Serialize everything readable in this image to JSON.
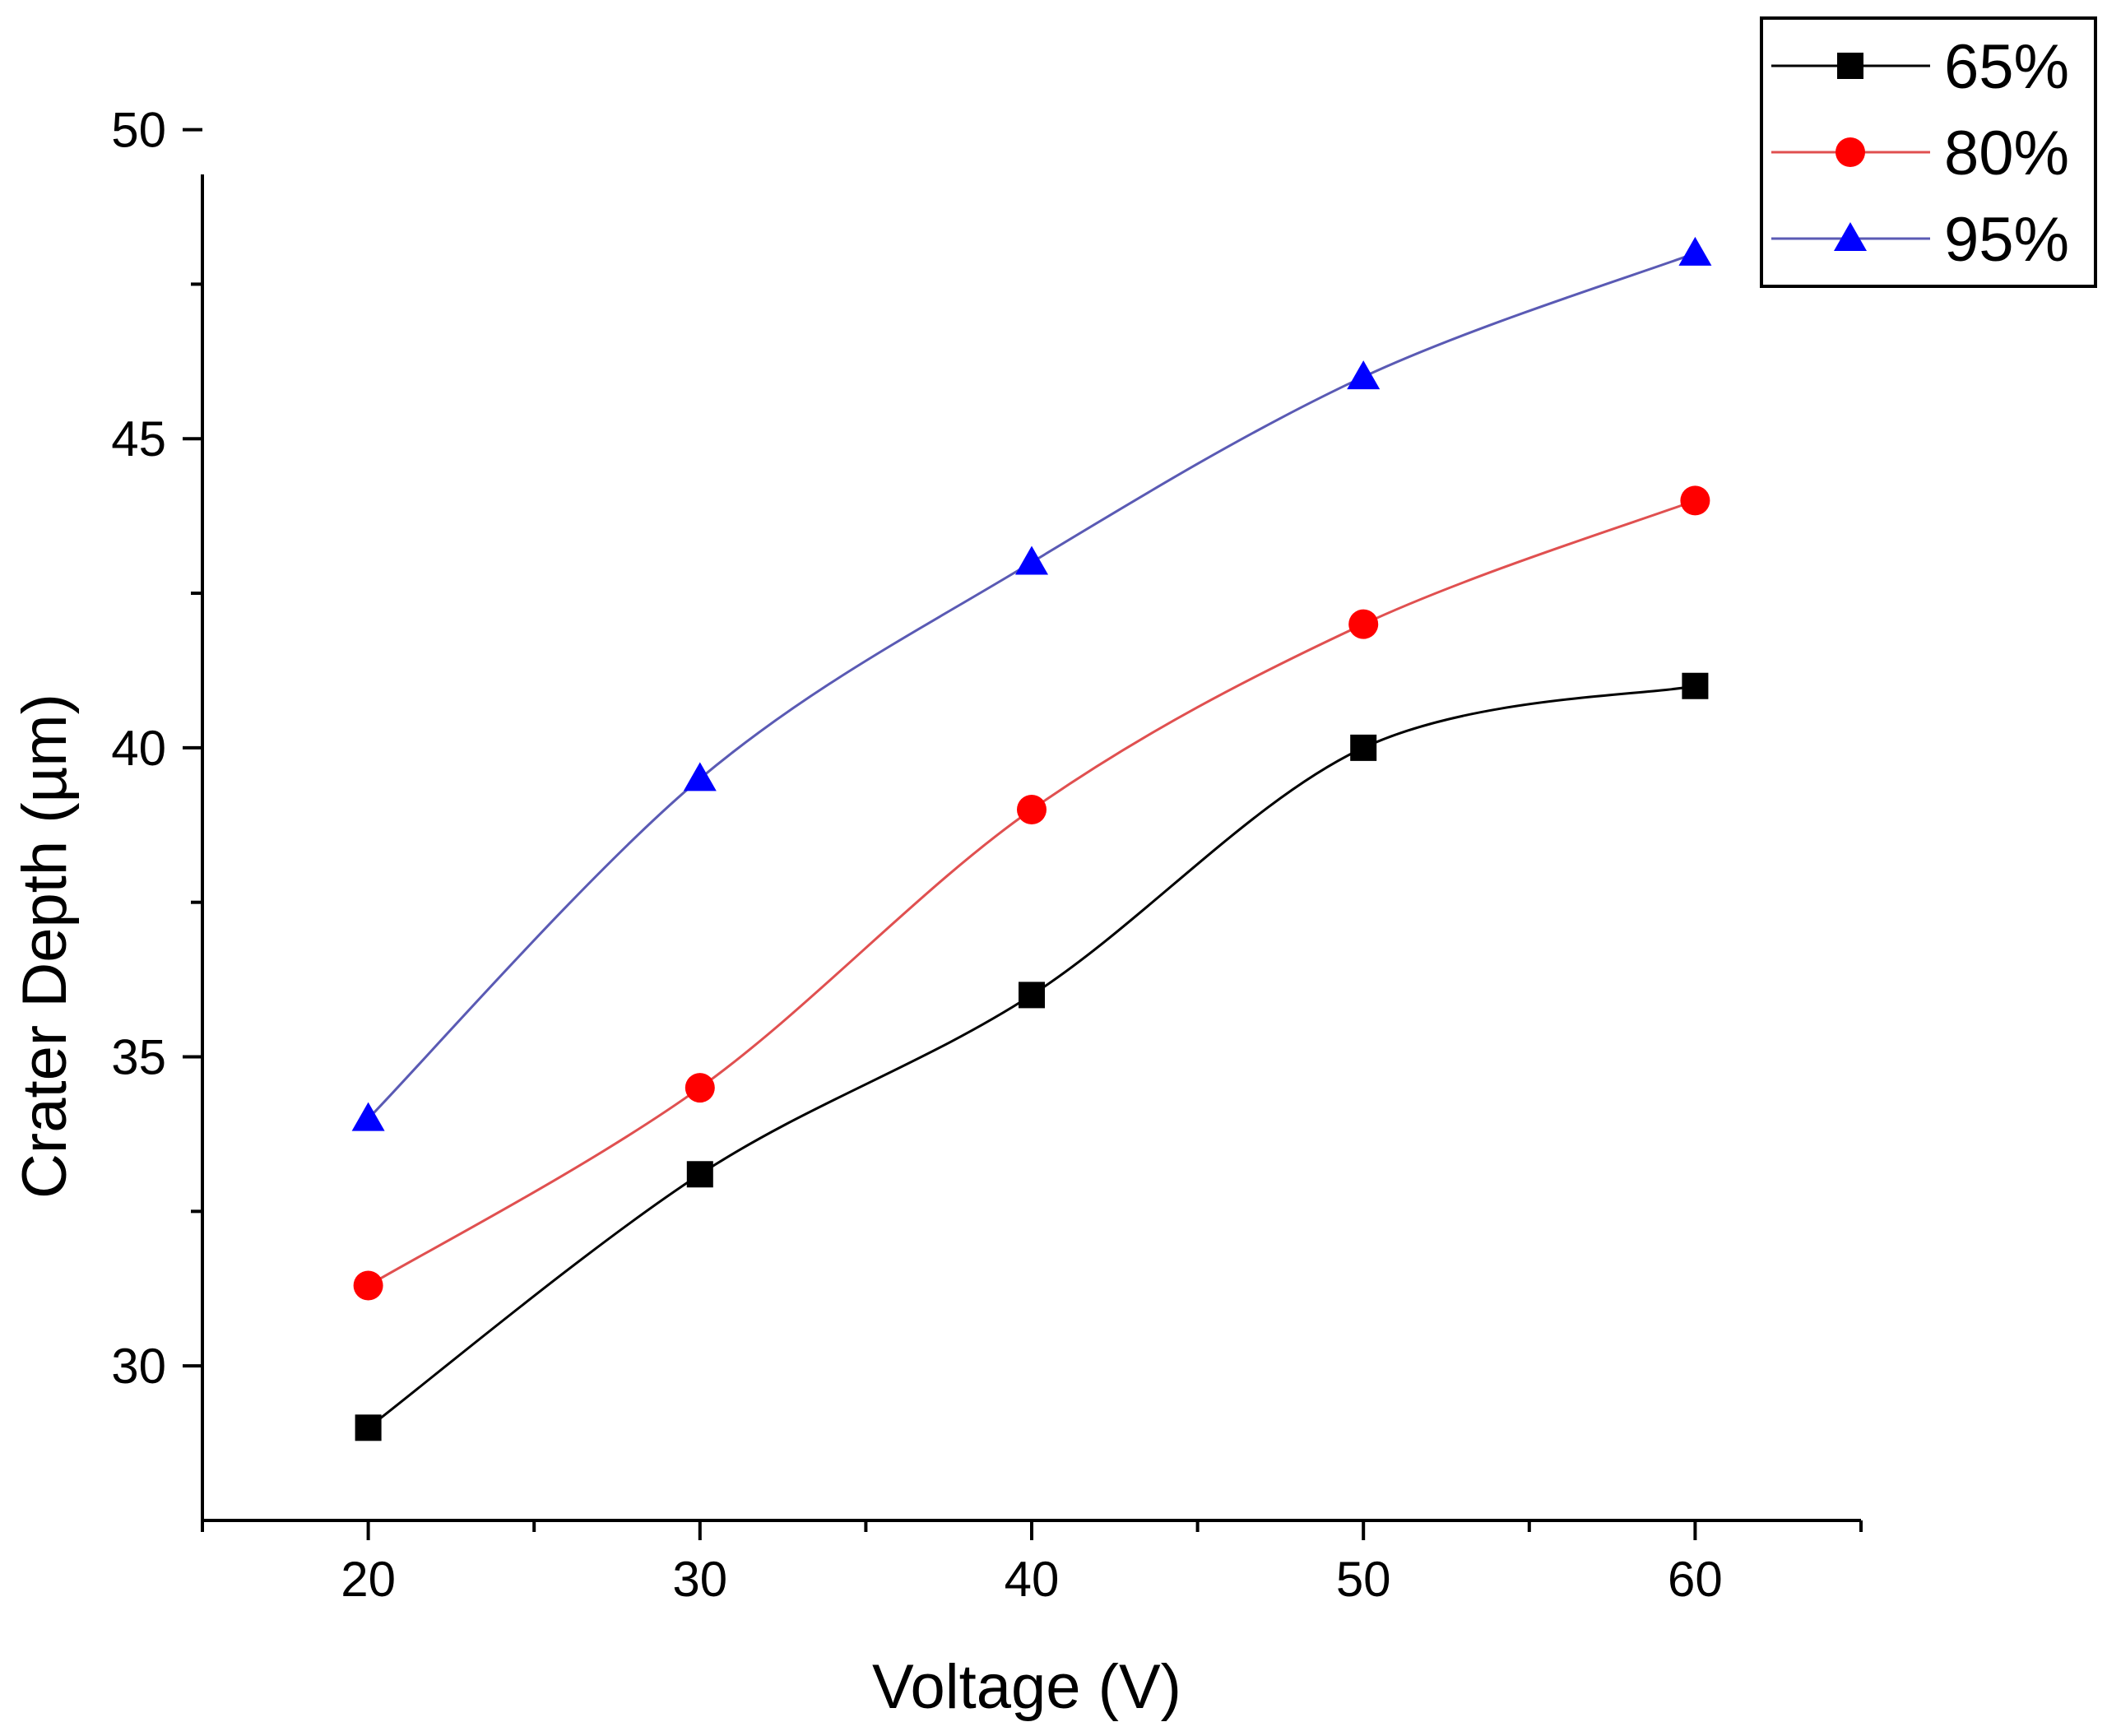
{
  "chart_data": {
    "type": "line",
    "title": "",
    "xlabel": "Voltage (V)",
    "ylabel": "Crater Depth (µm)",
    "xlim": [
      15,
      65
    ],
    "ylim": [
      27.5,
      50.5
    ],
    "x_ticks": [
      20,
      30,
      40,
      50,
      60
    ],
    "x_tick_labels": [
      "20",
      "30",
      "40",
      "50",
      "60"
    ],
    "y_ticks": [
      30,
      35,
      40,
      45,
      50
    ],
    "y_tick_labels": [
      "30",
      "35",
      "40",
      "45",
      "50"
    ],
    "grid": false,
    "legend_position": "top-right",
    "x": [
      20,
      30,
      40,
      50,
      60
    ],
    "series": [
      {
        "name": "65%",
        "values": [
          29.0,
          33.1,
          36.0,
          40.0,
          41.0
        ],
        "color": "#000000",
        "line_color": "#000000",
        "marker": "square"
      },
      {
        "name": "80%",
        "values": [
          31.3,
          34.5,
          39.0,
          42.0,
          44.0
        ],
        "color": "#ff0000",
        "line_color": "#e05050",
        "marker": "circle"
      },
      {
        "name": "95%",
        "values": [
          34.0,
          39.5,
          43.0,
          46.0,
          48.0
        ],
        "color": "#0000ff",
        "line_color": "#5a5ab4",
        "marker": "triangle"
      }
    ]
  }
}
